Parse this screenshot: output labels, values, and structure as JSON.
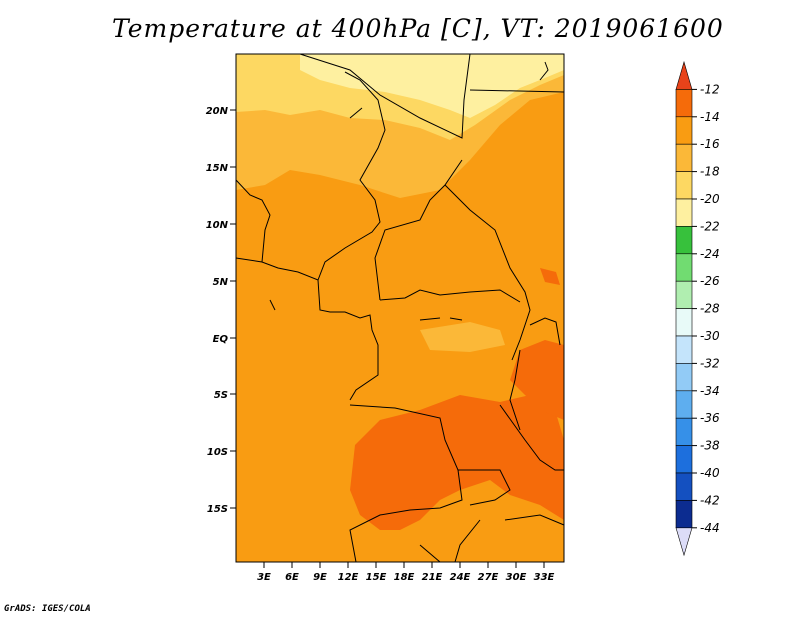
{
  "title": "Temperature at 400hPa [C], VT: 2019061600",
  "credit": "GrADS: IGES/COLA",
  "map": {
    "lat_ticks": [
      "20N",
      "15N",
      "10N",
      "5N",
      "EQ",
      "5S",
      "10S",
      "15S"
    ],
    "lon_ticks": [
      "3E",
      "6E",
      "9E",
      "12E",
      "15E",
      "18E",
      "21E",
      "24E",
      "27E",
      "30E",
      "33E"
    ]
  },
  "colorbar": {
    "labels": [
      "-12",
      "-14",
      "-16",
      "-18",
      "-20",
      "-22",
      "-24",
      "-26",
      "-28",
      "-30",
      "-32",
      "-34",
      "-36",
      "-38",
      "-40",
      "-42",
      "-44"
    ],
    "colors": [
      "#e8431a",
      "#f56b0a",
      "#f99c12",
      "#fbb838",
      "#fdd862",
      "#fef0a0",
      "#37c13c",
      "#71dc71",
      "#b0eeb0",
      "#e8faf8",
      "#c4e4fb",
      "#92cbf6",
      "#5eaeef",
      "#3690e8",
      "#1d6fdd",
      "#1450c0",
      "#0c2c90",
      "#dcdcf8"
    ]
  },
  "colors": {
    "temp_-14_-12": "#f56b0a",
    "temp_-16_-14": "#f99c12",
    "temp_-18_-16": "#fbb838",
    "temp_-20_-18": "#fdd862",
    "temp_-22_-20": "#fef0a0",
    "borders": "#000000"
  }
}
